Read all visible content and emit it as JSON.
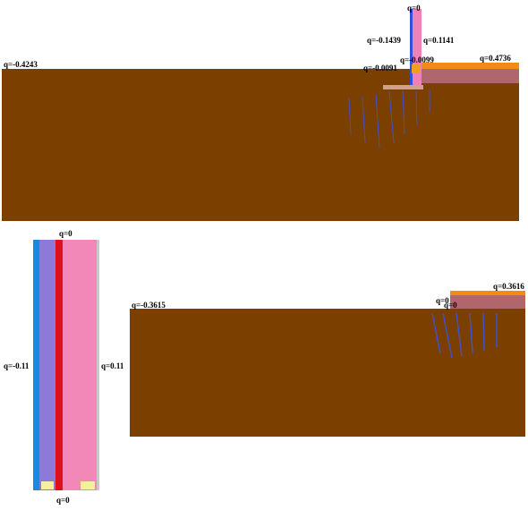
{
  "top_panel": {
    "labels": [
      "q=0",
      "q=-0.1439",
      "q=0.1141",
      "q=-0.4243",
      "q=-0.0099",
      "q=-0.0091",
      "q=0.4736"
    ]
  },
  "wall_panel": {
    "labels": [
      "q=0",
      "q=-0.11",
      "q=0.11",
      "q=0"
    ]
  },
  "slope_panel": {
    "labels": [
      "q=-0.3615",
      "q=0.3616",
      "q=0",
      "q=0"
    ]
  }
}
